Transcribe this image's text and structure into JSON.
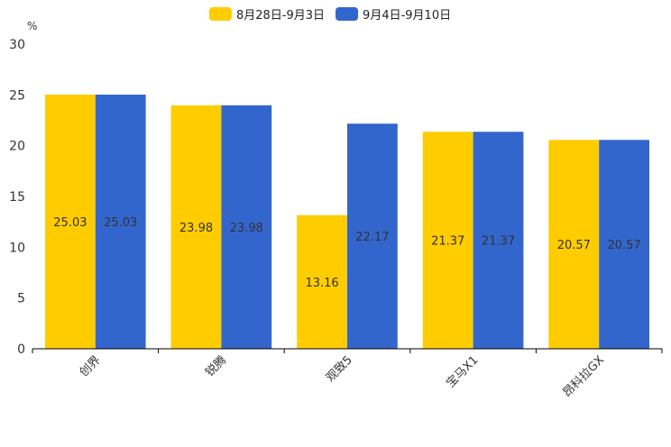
{
  "chart_data": {
    "type": "bar",
    "title": "",
    "ylabel": "%",
    "xlabel": "",
    "ylim": [
      0,
      30
    ],
    "yticks": [
      0,
      5,
      10,
      15,
      20,
      25,
      30
    ],
    "categories": [
      "创界",
      "锐腾",
      "观致5",
      "宝马X1",
      "昂科拉GX"
    ],
    "series": [
      {
        "name": "8月28日-9月3日",
        "color": "#FFCC00",
        "values": [
          25.03,
          23.98,
          13.16,
          21.37,
          20.57
        ]
      },
      {
        "name": "9月4日-9月10日",
        "color": "#3366CC",
        "values": [
          25.03,
          23.98,
          22.17,
          21.37,
          20.57
        ]
      }
    ],
    "legend": "top-center",
    "grid": false
  }
}
